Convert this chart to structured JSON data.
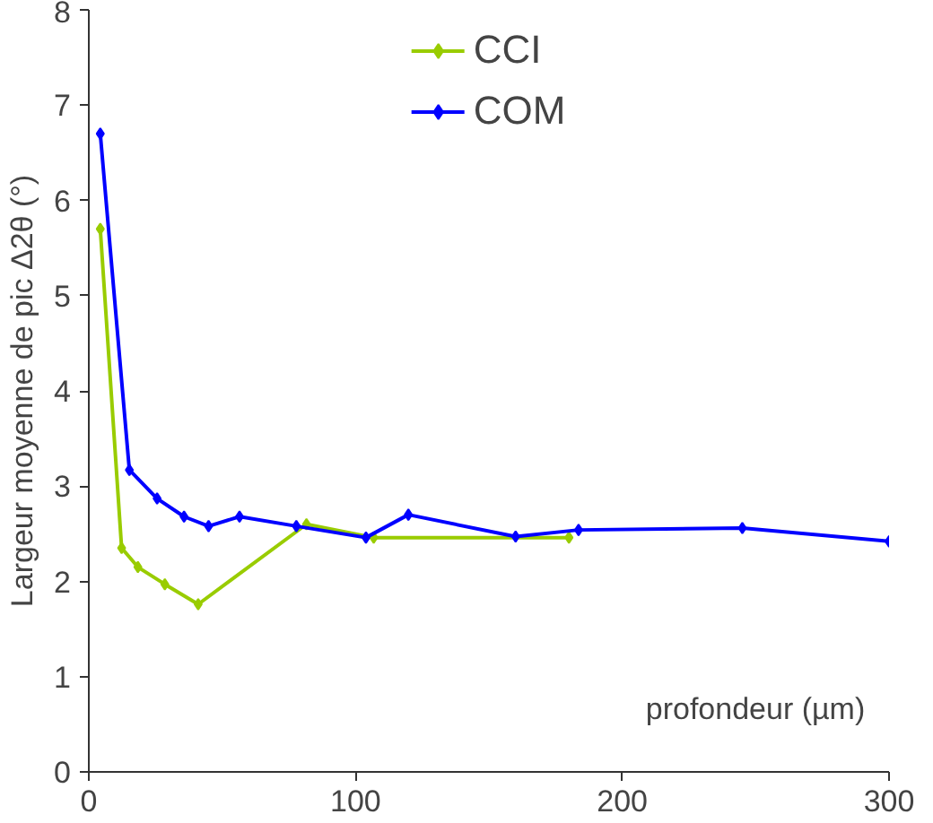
{
  "chart_data": {
    "type": "line",
    "xlabel": "profondeur (µm)",
    "ylabel": "Largeur moyenne de pic Δ2θ (°)",
    "xlim": [
      0,
      300
    ],
    "xticks": [
      0,
      100,
      200,
      300
    ],
    "ylim": [
      0,
      8
    ],
    "yticks": [
      0,
      1,
      2,
      3,
      4,
      5,
      6,
      7,
      8
    ],
    "grid": false,
    "legend": "top",
    "marker": "diamond",
    "line_style": "solid",
    "series": [
      {
        "name": "CCI",
        "color": "#99cc00",
        "x": [
          4.3,
          12.3,
          18.4,
          28.5,
          41,
          81.6,
          106.8,
          180
        ],
        "values": [
          5.7,
          2.35,
          2.15,
          1.97,
          1.76,
          2.6,
          2.46,
          2.46
        ]
      },
      {
        "name": "COM",
        "color": "#0000ff",
        "x": [
          4.3,
          15.2,
          25.6,
          35.7,
          44.9,
          56.5,
          77.8,
          103.9,
          119.8,
          160,
          183.6,
          245,
          300
        ],
        "values": [
          6.7,
          3.17,
          2.87,
          2.68,
          2.58,
          2.68,
          2.58,
          2.46,
          2.7,
          2.47,
          2.54,
          2.56,
          2.42
        ]
      }
    ]
  }
}
